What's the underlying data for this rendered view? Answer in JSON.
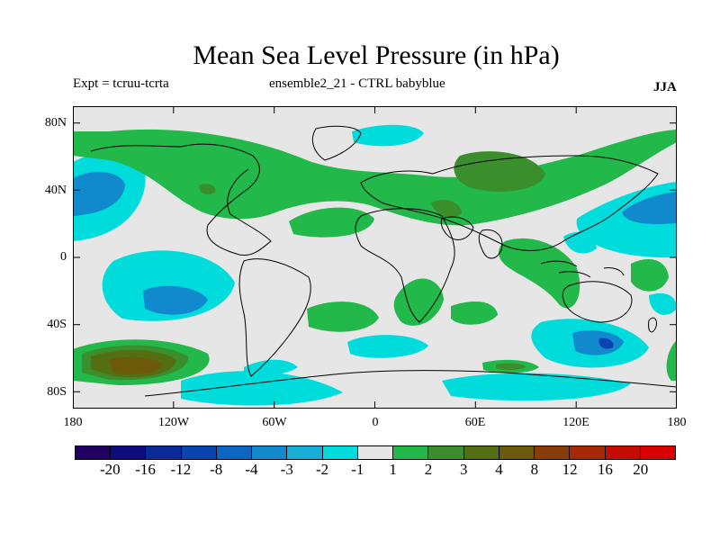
{
  "header": {
    "title": "Mean Sea Level Pressure (in hPa)",
    "experiment": "Expt = tcruu-tcrta",
    "ensemble": "ensemble2_21 - CTRL babyblue",
    "season": "JJA"
  },
  "map": {
    "projection": "cylindrical-equidistant",
    "lat_labels": [
      "80N",
      "40N",
      "0",
      "40S",
      "80S"
    ],
    "lon_labels": [
      "180",
      "120W",
      "60W",
      "0",
      "60E",
      "120E",
      "180"
    ],
    "field": "MSLP difference",
    "background_color": "#e6e6e6"
  },
  "colorbar": {
    "colors": [
      "#200060",
      "#0c0c80",
      "#0a2a9a",
      "#0a44b0",
      "#0c66c4",
      "#108acc",
      "#18aed8",
      "#00dcdc",
      "#e6e6e6",
      "#22b84a",
      "#3a8e2c",
      "#546e12",
      "#6c5a0a",
      "#8a3c06",
      "#a82804",
      "#c40c02",
      "#d80000"
    ],
    "labels": [
      "-20",
      "-16",
      "-12",
      "-8",
      "-4",
      "-3",
      "-2",
      "-1",
      "1",
      "2",
      "3",
      "4",
      "8",
      "12",
      "16",
      "20"
    ]
  }
}
